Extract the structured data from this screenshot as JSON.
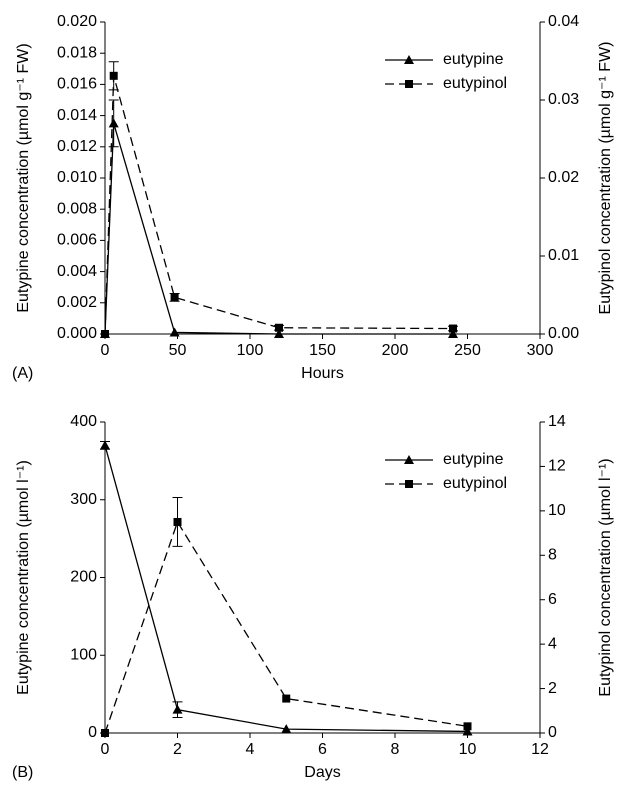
{
  "chart_data": [
    {
      "type": "line",
      "panel_label": "(A)",
      "x_label": "Hours",
      "y_label": "Eutypine concentration (µmol g⁻¹ FW)",
      "y2_label": "Eutypinol concentration (µmol g⁻¹ FW)",
      "x": [
        0,
        6,
        48,
        120,
        240
      ],
      "xlim": [
        0,
        300
      ],
      "xticks": [
        0,
        50,
        100,
        150,
        200,
        250,
        300
      ],
      "ylim": [
        0,
        0.02
      ],
      "yticks": [
        {
          "value": 0,
          "label": "0.000"
        },
        {
          "value": 0.002,
          "label": "0.002"
        },
        {
          "value": 0.004,
          "label": "0.004"
        },
        {
          "value": 0.006,
          "label": "0.006"
        },
        {
          "value": 0.008,
          "label": "0.008"
        },
        {
          "value": 0.01,
          "label": "0.010"
        },
        {
          "value": 0.012,
          "label": "0.012"
        },
        {
          "value": 0.014,
          "label": "0.014"
        },
        {
          "value": 0.016,
          "label": "0.016"
        },
        {
          "value": 0.018,
          "label": "0.018"
        },
        {
          "value": 0.02,
          "label": "0.020"
        }
      ],
      "y2lim": [
        0,
        0.04
      ],
      "y2ticks": [
        {
          "value": 0,
          "label": "0.00"
        },
        {
          "value": 0.01,
          "label": "0.01"
        },
        {
          "value": 0.02,
          "label": "0.02"
        },
        {
          "value": 0.03,
          "label": "0.03"
        },
        {
          "value": 0.04,
          "label": "0.04"
        }
      ],
      "legend": "upper right",
      "series": [
        {
          "name": "eutypine",
          "color": "#000000",
          "marker": "triangle",
          "linestyle": "solid",
          "axis": "y",
          "values": [
            0,
            0.0135,
            0.0001,
            0,
            0
          ],
          "errors": [
            null,
            0.0015,
            null,
            null,
            null
          ]
        },
        {
          "name": "eutypinol",
          "color": "#000000",
          "marker": "square",
          "linestyle": "dashed",
          "axis": "y2",
          "values": [
            0,
            0.0331,
            0.0047,
            0.0008,
            0.0007
          ],
          "errors": [
            null,
            0.0018,
            0.0005,
            0.0003,
            0.0003
          ]
        }
      ]
    },
    {
      "type": "line",
      "panel_label": "(B)",
      "x_label": "Days",
      "y_label": "Eutypine concentration (µmol l⁻¹)",
      "y2_label": "Eutypinol concentration (µmol l⁻¹)",
      "x": [
        0,
        2,
        5,
        10
      ],
      "xlim": [
        0,
        12
      ],
      "xticks": [
        0,
        2,
        4,
        6,
        8,
        10,
        12
      ],
      "ylim": [
        0,
        400
      ],
      "yticks": [
        0,
        100,
        200,
        300,
        400
      ],
      "y2lim": [
        0,
        14
      ],
      "y2ticks": [
        0,
        2,
        4,
        6,
        8,
        10,
        12,
        14
      ],
      "legend": "upper right",
      "series": [
        {
          "name": "eutypine",
          "color": "#000000",
          "marker": "triangle",
          "linestyle": "solid",
          "axis": "y",
          "values": [
            370,
            30,
            5,
            2
          ],
          "errors": [
            5,
            10,
            null,
            null
          ]
        },
        {
          "name": "eutypinol",
          "color": "#000000",
          "marker": "square",
          "linestyle": "dashed",
          "axis": "y2",
          "values": [
            0,
            9.5,
            1.55,
            0.3
          ],
          "errors": [
            null,
            1.1,
            null,
            null
          ]
        }
      ]
    }
  ]
}
